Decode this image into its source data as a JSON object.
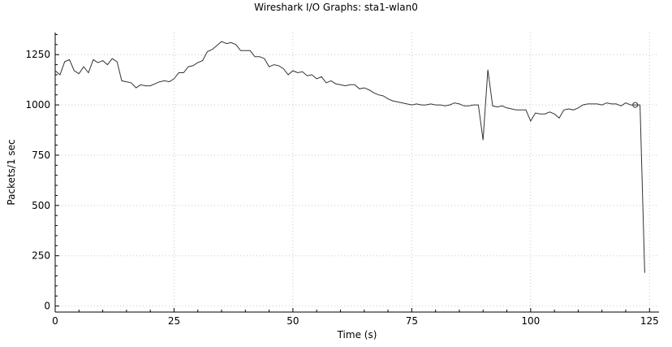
{
  "chart_data": {
    "type": "line",
    "title": "Wireshark I/O Graphs: sta1-wlan0",
    "xlabel": "Time (s)",
    "ylabel": "Packets/1 sec",
    "xlim": [
      0,
      127
    ],
    "ylim": [
      -30,
      1360
    ],
    "xticks": [
      0,
      25,
      50,
      75,
      100,
      125
    ],
    "yticks": [
      0,
      250,
      500,
      750,
      1000,
      1250
    ],
    "grid": true,
    "marker": {
      "x": 122,
      "y": 1000,
      "shape": "circle"
    },
    "series": [
      {
        "color": "#333333",
        "x": [
          0,
          1,
          2,
          3,
          4,
          5,
          6,
          7,
          8,
          9,
          10,
          11,
          12,
          13,
          14,
          15,
          16,
          17,
          18,
          19,
          20,
          21,
          22,
          23,
          24,
          25,
          26,
          27,
          28,
          29,
          30,
          31,
          32,
          33,
          34,
          35,
          36,
          37,
          38,
          39,
          40,
          41,
          42,
          43,
          44,
          45,
          46,
          47,
          48,
          49,
          50,
          51,
          52,
          53,
          54,
          55,
          56,
          57,
          58,
          59,
          60,
          61,
          62,
          63,
          64,
          65,
          66,
          67,
          68,
          69,
          70,
          71,
          72,
          73,
          74,
          75,
          76,
          77,
          78,
          79,
          80,
          81,
          82,
          83,
          84,
          85,
          86,
          87,
          88,
          89,
          90,
          91,
          92,
          93,
          94,
          95,
          96,
          97,
          98,
          99,
          100,
          101,
          102,
          103,
          104,
          105,
          106,
          107,
          108,
          109,
          110,
          111,
          112,
          113,
          114,
          115,
          116,
          117,
          118,
          119,
          120,
          121,
          122,
          123,
          124
        ],
        "y": [
          1170,
          1150,
          1215,
          1225,
          1170,
          1155,
          1190,
          1160,
          1225,
          1210,
          1220,
          1200,
          1230,
          1215,
          1120,
          1115,
          1110,
          1085,
          1100,
          1095,
          1095,
          1105,
          1115,
          1120,
          1115,
          1130,
          1160,
          1160,
          1190,
          1195,
          1210,
          1220,
          1265,
          1275,
          1295,
          1315,
          1305,
          1310,
          1300,
          1270,
          1270,
          1270,
          1240,
          1240,
          1230,
          1190,
          1200,
          1195,
          1180,
          1150,
          1170,
          1160,
          1165,
          1145,
          1150,
          1130,
          1140,
          1110,
          1120,
          1105,
          1100,
          1095,
          1100,
          1100,
          1080,
          1085,
          1075,
          1060,
          1050,
          1045,
          1030,
          1020,
          1015,
          1010,
          1005,
          1000,
          1005,
          1000,
          1000,
          1005,
          1000,
          1000,
          995,
          1000,
          1010,
          1005,
          995,
          995,
          1000,
          1000,
          825,
          1175,
          995,
          990,
          995,
          985,
          980,
          975,
          975,
          975,
          920,
          960,
          955,
          955,
          965,
          955,
          935,
          975,
          980,
          975,
          985,
          1000,
          1005,
          1005,
          1005,
          1000,
          1010,
          1005,
          1005,
          995,
          1010,
          1000,
          1000,
          1000,
          165
        ]
      }
    ]
  }
}
